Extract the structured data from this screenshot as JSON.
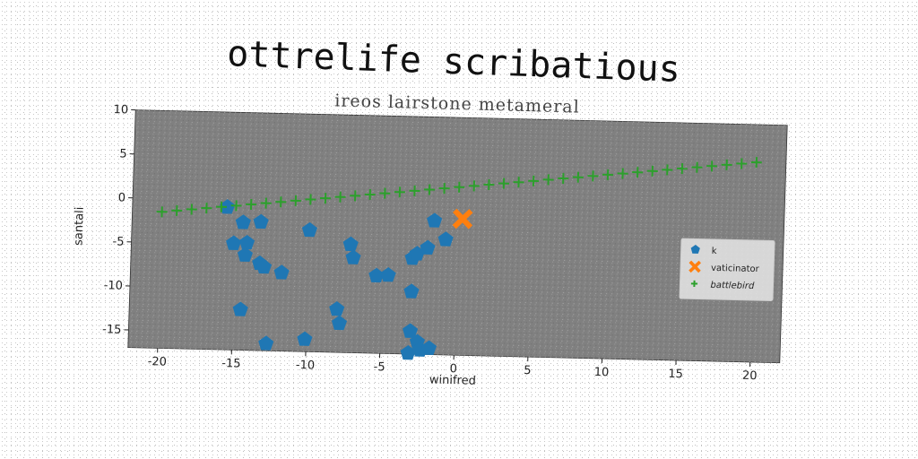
{
  "chart_data": {
    "type": "scatter",
    "title": "ottrelife scribatious",
    "subtitle": "ireos lairstone metameral",
    "xlabel": "winifred",
    "ylabel": "santali",
    "xlim": [
      -22,
      22
    ],
    "ylim": [
      -17,
      10
    ],
    "xticks": [
      -20,
      -15,
      -10,
      -5,
      0,
      5,
      10,
      15,
      20
    ],
    "yticks": [
      10,
      5,
      0,
      -5,
      -10,
      -15
    ],
    "grid": false,
    "legend_position": "center-right",
    "background": "#808080",
    "series": [
      {
        "name": "k",
        "marker": "pentagon",
        "color": "#1f77b4",
        "x": [
          -15.6,
          -14.5,
          -13.3,
          -15.1,
          -14.2,
          -14.3,
          -13.3,
          -13.0,
          -11.8,
          -10.0,
          -7.2,
          -7.0,
          -5.4,
          -4.6,
          -3.0,
          -2.7,
          -3.0,
          -1.6,
          -0.8,
          -2.0,
          -8.0,
          -7.8,
          -14.5,
          -12.7,
          -10.1,
          -3.0,
          -2.5,
          -3.1,
          -2.3,
          -1.7
        ],
        "y": [
          -0.8,
          -2.5,
          -2.4,
          -4.9,
          -4.8,
          -6.2,
          -7.1,
          -7.5,
          -8.1,
          -3.2,
          -4.7,
          -6.2,
          -8.2,
          -8.1,
          -6.1,
          -5.6,
          -9.9,
          -1.8,
          -3.9,
          -4.9,
          -12.1,
          -13.7,
          -12.4,
          -16.2,
          -15.6,
          -14.4,
          -15.6,
          -16.9,
          -16.5,
          -16.3
        ]
      },
      {
        "name": "vaticinator",
        "marker": "x-filled",
        "color": "#ff7f0e",
        "x": [
          0.3
        ],
        "y": [
          -1.5
        ]
      },
      {
        "name": "battlebird",
        "marker": "plus",
        "color": "#2ca02c",
        "x": [
          -20.0,
          -19.0,
          -18.0,
          -17.0,
          -16.0,
          -15.0,
          -14.0,
          -13.0,
          -12.0,
          -11.0,
          -10.0,
          -9.0,
          -8.0,
          -7.0,
          -6.0,
          -5.0,
          -4.0,
          -3.0,
          -2.0,
          -1.0,
          0.0,
          1.0,
          2.0,
          3.0,
          4.0,
          5.0,
          6.0,
          7.0,
          8.0,
          9.0,
          10.0,
          11.0,
          12.0,
          13.0,
          14.0,
          15.0,
          16.0,
          17.0,
          18.0,
          19.0,
          20.0
        ],
        "y": [
          -1.5,
          -1.32,
          -1.14,
          -0.96,
          -0.78,
          -0.6,
          -0.42,
          -0.24,
          -0.06,
          0.12,
          0.3,
          0.48,
          0.66,
          0.84,
          1.02,
          1.2,
          1.38,
          1.56,
          1.74,
          1.92,
          2.1,
          2.28,
          2.46,
          2.64,
          2.82,
          3.0,
          3.18,
          3.36,
          3.54,
          3.72,
          3.9,
          4.08,
          4.26,
          4.44,
          4.62,
          4.8,
          4.98,
          5.16,
          5.34,
          5.52,
          5.7
        ]
      }
    ]
  }
}
